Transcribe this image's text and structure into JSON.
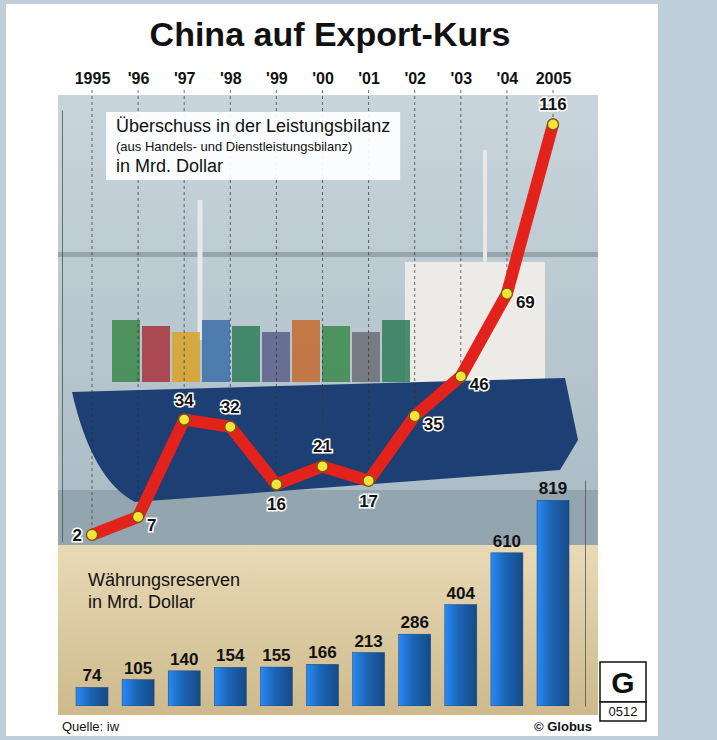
{
  "chart_data": {
    "type": "line",
    "title": "China auf Export-Kurs",
    "categories": [
      "1995",
      "'96",
      "'97",
      "'98",
      "'99",
      "'00",
      "'01",
      "'02",
      "'03",
      "'04",
      "2005"
    ],
    "series": [
      {
        "name": "Überschuss in der Leistungsbilanz",
        "type": "line",
        "color": "#e3231b",
        "marker": "circle",
        "values": [
          2,
          7,
          34,
          32,
          16,
          21,
          17,
          35,
          46,
          69,
          116
        ]
      },
      {
        "name": "Währungsreserven",
        "type": "bar",
        "axis": "y2",
        "color": "#1c64b4",
        "values": [
          74,
          105,
          140,
          154,
          155,
          166,
          213,
          286,
          404,
          610,
          819
        ]
      }
    ],
    "ylim": [
      0,
      120
    ],
    "yticks": [],
    "y2lim": [
      0,
      900
    ],
    "y2ticks": [],
    "tick_labels": "x",
    "data_labels": true,
    "annotations": [
      "(aus Handels- und Dienstleistungsbilanz)",
      "in Mrd. Dollar",
      "in Mrd. Dollar",
      "Quelle: iw",
      "© Globus",
      "G",
      "0512"
    ]
  }
}
